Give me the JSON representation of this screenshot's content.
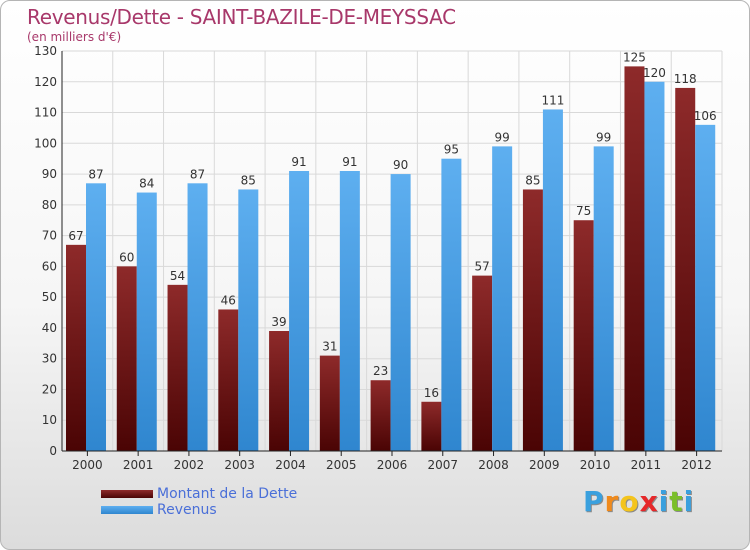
{
  "chart_data": {
    "type": "bar",
    "title": "Revenus/Dette - SAINT-BAZILE-DE-MEYSSAC",
    "subtitle": "(en milliers d'€)",
    "categories": [
      "2000",
      "2001",
      "2002",
      "2003",
      "2004",
      "2005",
      "2006",
      "2007",
      "2008",
      "2009",
      "2010",
      "2011",
      "2012"
    ],
    "series": [
      {
        "name": "Montant de la Dette",
        "color": "#6b1515",
        "values": [
          67,
          60,
          54,
          46,
          39,
          31,
          23,
          16,
          57,
          85,
          75,
          125,
          118
        ]
      },
      {
        "name": "Revenus",
        "color": "#4da1e6",
        "values": [
          87,
          84,
          87,
          85,
          91,
          91,
          90,
          95,
          99,
          111,
          99,
          120,
          106
        ]
      }
    ],
    "ylim": [
      0,
      130
    ],
    "yticks": [
      0,
      10,
      20,
      30,
      40,
      50,
      60,
      70,
      80,
      90,
      100,
      110,
      120,
      130
    ],
    "grid": true,
    "legend_position": "bottom-left"
  },
  "logo": {
    "letters": [
      "P",
      "r",
      "o",
      "x",
      "i",
      "t",
      "i"
    ],
    "colors": [
      "#3aa0de",
      "#f08a1c",
      "#f4c41c",
      "#e6282a",
      "#3aa0de",
      "#7bbf2a",
      "#3aa0de"
    ]
  }
}
